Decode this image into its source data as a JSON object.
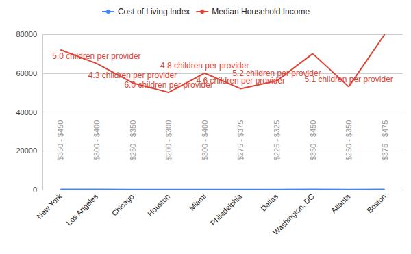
{
  "chart_data": {
    "type": "line",
    "categories": [
      "New York",
      "Los Angeles",
      "Chicago",
      "Houston",
      "Miami",
      "Philadelphia",
      "Dallas",
      "Washington, DC",
      "Atlanta",
      "Boston"
    ],
    "series": [
      {
        "name": "Cost of Living Index",
        "color": "#4285f4",
        "values": [
          187,
          166,
          123,
          96,
          123,
          117,
          103,
          152,
          107,
          162
        ]
      },
      {
        "name": "Median Household Income",
        "color": "#db4437",
        "values": [
          72000,
          65000,
          55000,
          50000,
          60000,
          52000,
          56000,
          70000,
          53000,
          80000
        ]
      }
    ],
    "annotations": [
      {
        "category": "Los Angeles",
        "series": "Median Household Income",
        "text": "5.0 children per provider"
      },
      {
        "category": "Chicago",
        "series": "Median Household Income",
        "text": "4.3 children per provider"
      },
      {
        "category": "Houston",
        "series": "Median Household Income",
        "text": "6.0 children per provider"
      },
      {
        "category": "Miami",
        "series": "Median Household Income",
        "text": "4.8 children per provider"
      },
      {
        "category": "Philadelphia",
        "series": "Median Household Income",
        "text": "4.6 children per provider"
      },
      {
        "category": "Dallas",
        "series": "Median Household Income",
        "text": "5.2 children per provider"
      },
      {
        "category": "Atlanta",
        "series": "Median Household Income",
        "text": "5.1 children per provider"
      },
      {
        "category": "New York",
        "text": "$350 - $450"
      },
      {
        "category": "Los Angeles",
        "text": "$300 - $400"
      },
      {
        "category": "Chicago",
        "text": "$250 - $350"
      },
      {
        "category": "Houston",
        "text": "$200 - $300"
      },
      {
        "category": "Miami",
        "text": "$300 - $400"
      },
      {
        "category": "Philadelphia",
        "text": "$275 - $375"
      },
      {
        "category": "Dallas",
        "text": "$225 - $325"
      },
      {
        "category": "Washington, DC",
        "text": "$350 - $450"
      },
      {
        "category": "Atlanta",
        "text": "$250 - $350"
      },
      {
        "category": "Boston",
        "text": "$375 - $475"
      }
    ],
    "ylim": [
      0,
      80000
    ],
    "yticks": [
      0,
      20000,
      40000,
      60000,
      80000
    ],
    "grid": true,
    "legend": "top"
  }
}
